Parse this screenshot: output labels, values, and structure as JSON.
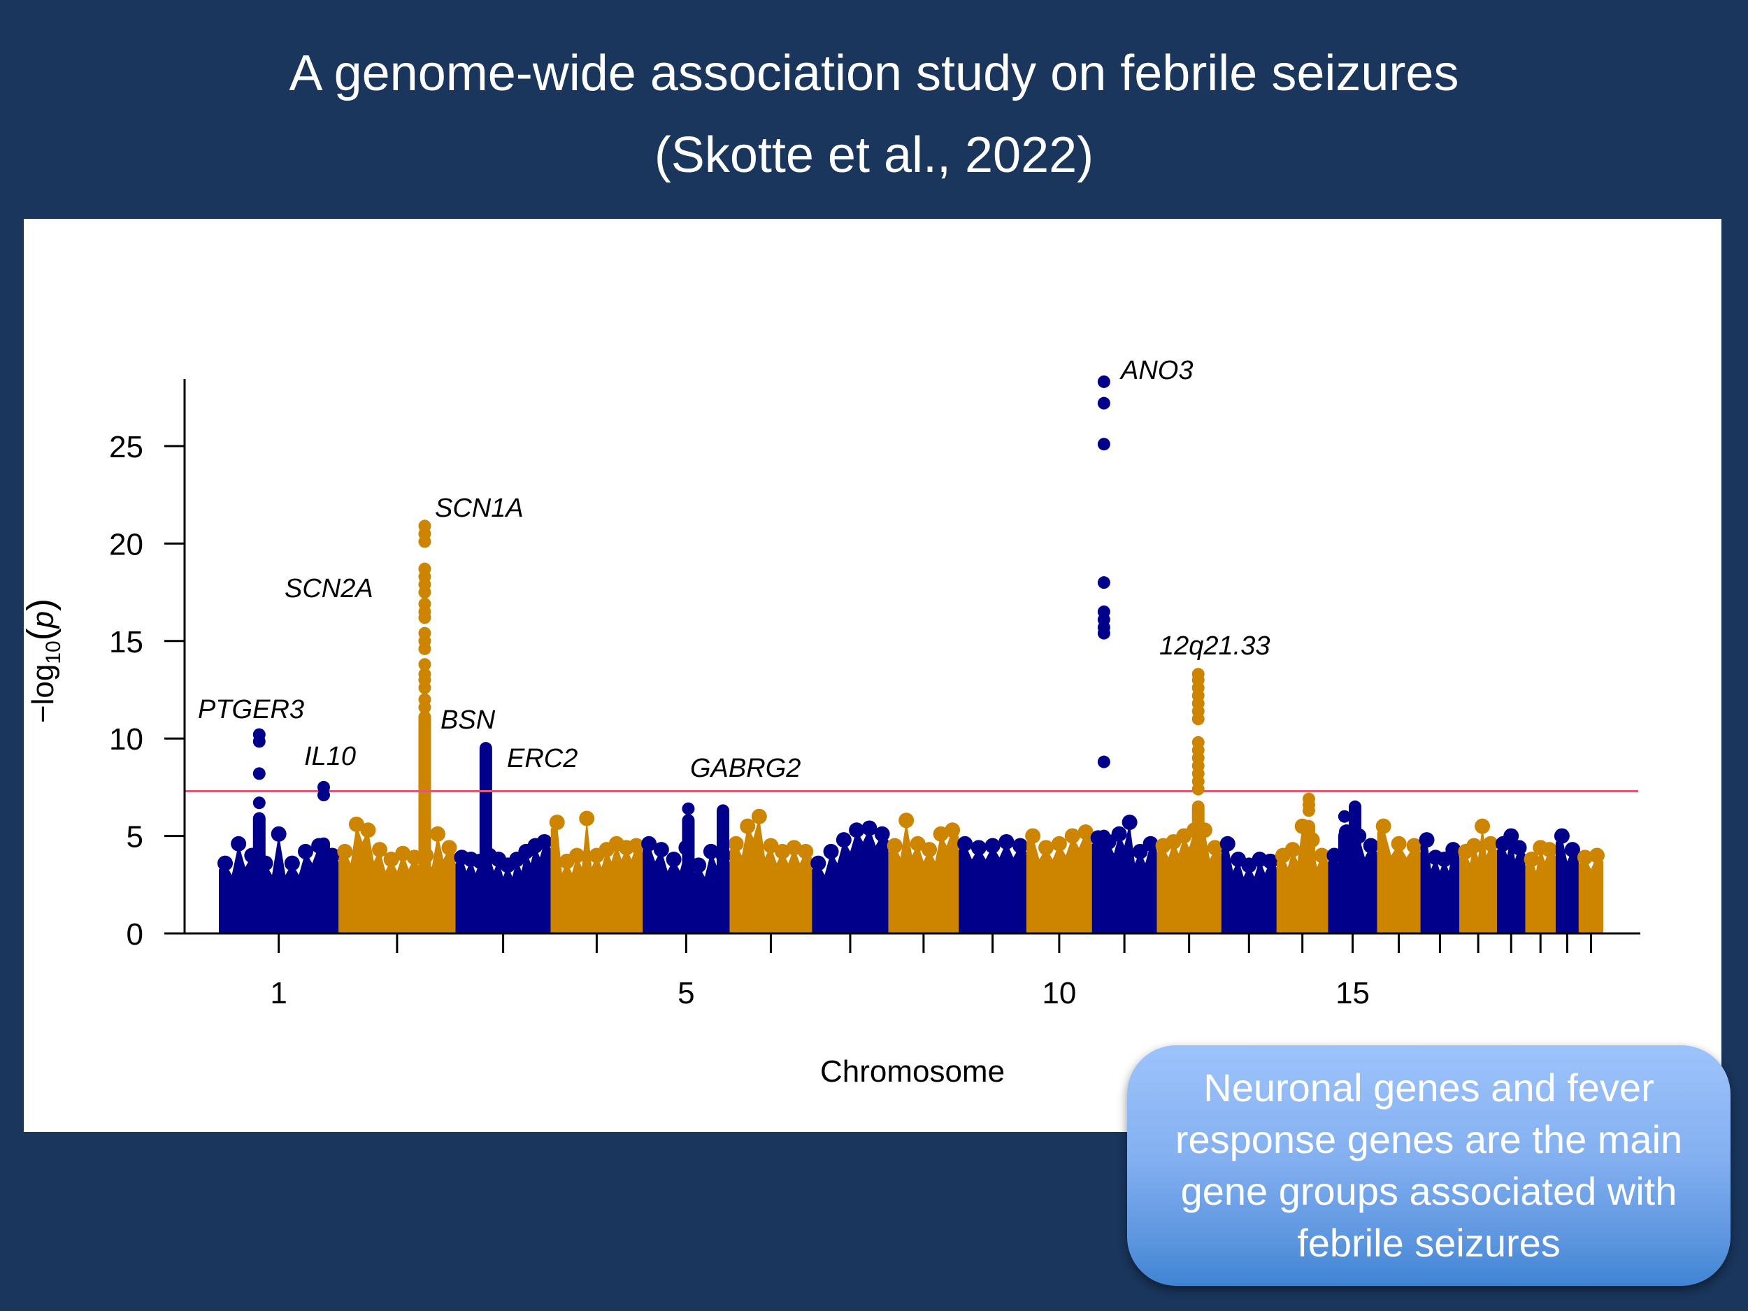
{
  "slide": {
    "title_line1": "A genome-wide association study on febrile seizures",
    "title_line2": "(Skotte et al., 2022)"
  },
  "callout": {
    "lines": [
      "Neuronal genes and fever",
      "response genes are the main",
      "gene groups associated with",
      "febrile seizures"
    ]
  },
  "colors": {
    "background": "#1a365d",
    "panel": "#ffffff",
    "odd_chromosome": "#00008b",
    "even_chromosome": "#cd8500",
    "threshold_line": "#e05a72",
    "callout_top": "#9dc3fb",
    "callout_bottom": "#3f84d3"
  },
  "chart_data": {
    "type": "scatter",
    "subtype": "manhattan",
    "title": "",
    "xlabel": "Chromosome",
    "ylabel_prefix": "−log",
    "ylabel_subscript": "10",
    "ylabel_open": "(",
    "ylabel_variable": "p",
    "ylabel_close": ")",
    "ylim": [
      0,
      28.5
    ],
    "y_ticks": [
      0,
      5,
      10,
      15,
      20,
      25
    ],
    "y_tick_labels": [
      "0",
      "5",
      "10",
      "15",
      "20",
      "25"
    ],
    "x_tick_chromosomes": [
      1,
      2,
      3,
      4,
      5,
      6,
      7,
      8,
      9,
      10,
      11,
      12,
      13,
      14,
      15,
      16,
      17,
      18,
      19,
      20,
      21,
      22
    ],
    "x_tick_labels": [
      {
        "chr": 1,
        "label": "1"
      },
      {
        "chr": 5,
        "label": "5"
      },
      {
        "chr": 10,
        "label": "10"
      },
      {
        "chr": 15,
        "label": "15"
      }
    ],
    "grid": false,
    "legend": "none",
    "significance_threshold": 7.3,
    "chromosomes": [
      {
        "chr": 1,
        "length_mb": 249,
        "envelope": [
          3.6,
          4.6,
          4.0,
          3.6,
          5.1,
          3.6,
          4.2,
          4.5,
          4.0
        ]
      },
      {
        "chr": 2,
        "length_mb": 243,
        "envelope": [
          4.2,
          5.6,
          5.3,
          4.3,
          3.8,
          4.1,
          3.9,
          4.0,
          5.1,
          4.4
        ]
      },
      {
        "chr": 3,
        "length_mb": 198,
        "envelope": [
          3.9,
          3.8,
          3.7,
          4.0,
          3.8,
          3.5,
          3.8,
          4.2,
          4.5,
          4.7
        ]
      },
      {
        "chr": 4,
        "length_mb": 191,
        "envelope": [
          5.7,
          3.7,
          4.0,
          5.9,
          4.0,
          4.3,
          4.6,
          4.4,
          4.5
        ]
      },
      {
        "chr": 5,
        "length_mb": 181,
        "envelope": [
          4.6,
          4.3,
          3.8,
          4.4,
          3.5,
          4.2,
          4.0
        ]
      },
      {
        "chr": 6,
        "length_mb": 171,
        "envelope": [
          4.6,
          5.5,
          6.0,
          4.5,
          4.2,
          4.4,
          4.2
        ]
      },
      {
        "chr": 7,
        "length_mb": 159,
        "envelope": [
          3.6,
          4.2,
          4.8,
          5.3,
          5.4,
          5.1
        ]
      },
      {
        "chr": 8,
        "length_mb": 146,
        "envelope": [
          4.5,
          5.8,
          4.6,
          4.3,
          5.1,
          5.3
        ]
      },
      {
        "chr": 9,
        "length_mb": 141,
        "envelope": [
          4.6,
          4.4,
          4.5,
          4.7,
          4.5
        ]
      },
      {
        "chr": 10,
        "length_mb": 136,
        "envelope": [
          5.0,
          4.4,
          4.6,
          5.0,
          5.2
        ]
      },
      {
        "chr": 11,
        "length_mb": 135,
        "envelope": [
          4.9,
          4.7,
          5.1,
          5.7,
          4.2,
          4.6
        ]
      },
      {
        "chr": 12,
        "length_mb": 134,
        "envelope": [
          4.5,
          4.7,
          5.0,
          5.3,
          5.3,
          4.4
        ]
      },
      {
        "chr": 13,
        "length_mb": 115,
        "envelope": [
          4.6,
          3.8,
          3.5,
          3.8,
          3.7
        ]
      },
      {
        "chr": 14,
        "length_mb": 107,
        "envelope": [
          4.0,
          4.3,
          5.5,
          4.8,
          4.0
        ]
      },
      {
        "chr": 15,
        "length_mb": 102,
        "envelope": [
          4.0,
          5.2,
          5.0,
          4.5
        ]
      },
      {
        "chr": 16,
        "length_mb": 90,
        "envelope": [
          5.5,
          4.6,
          4.5
        ]
      },
      {
        "chr": 17,
        "length_mb": 81,
        "envelope": [
          4.8,
          3.9,
          3.8,
          4.3
        ]
      },
      {
        "chr": 18,
        "length_mb": 78,
        "envelope": [
          4.2,
          4.5,
          5.5,
          4.6
        ]
      },
      {
        "chr": 19,
        "length_mb": 59,
        "envelope": [
          4.6,
          5.0,
          4.4
        ]
      },
      {
        "chr": 20,
        "length_mb": 63,
        "envelope": [
          3.8,
          4.4,
          4.3
        ]
      },
      {
        "chr": 21,
        "length_mb": 48,
        "envelope": [
          5.0,
          4.3
        ]
      },
      {
        "chr": 22,
        "length_mb": 51,
        "envelope": [
          3.9,
          4.0
        ]
      }
    ],
    "peaks": [
      {
        "chr": 1,
        "pos_mb": 84,
        "column_top": 5.9,
        "points": [
          10.2,
          9.85,
          8.2,
          6.7
        ]
      },
      {
        "chr": 1,
        "pos_mb": 218,
        "column_top": 4.6,
        "points": [
          7.5,
          7.1
        ]
      },
      {
        "chr": 2,
        "pos_mb": 179,
        "column_top": 11.1,
        "points": [
          20.9,
          20.5,
          20.1,
          18.7,
          18.3,
          17.9,
          17.5,
          16.9,
          16.5,
          16.2,
          15.4,
          15.0,
          14.6,
          13.8,
          13.3,
          13.0,
          12.6,
          12.0,
          11.6
        ]
      },
      {
        "chr": 3,
        "pos_mb": 63,
        "column_top": 9.5,
        "points": []
      },
      {
        "chr": 5,
        "pos_mb": 95,
        "column_top": 5.8,
        "points": [
          6.4
        ]
      },
      {
        "chr": 5,
        "pos_mb": 167,
        "column_top": 6.3,
        "points": []
      },
      {
        "chr": 11,
        "pos_mb": 25,
        "column_top": 5.0,
        "points": [
          28.3,
          27.2,
          25.1,
          18.0,
          16.5,
          16.1,
          15.7,
          15.4,
          8.8
        ]
      },
      {
        "chr": 12,
        "pos_mb": 86,
        "column_top": 6.5,
        "points": [
          13.3,
          13.0,
          12.6,
          12.2,
          11.8,
          11.4,
          11.0,
          9.8,
          9.4,
          9.0,
          8.6,
          8.2,
          7.8,
          7.4
        ]
      },
      {
        "chr": 14,
        "pos_mb": 67,
        "column_top": 5.5,
        "points": [
          6.9,
          6.6,
          6.3
        ]
      },
      {
        "chr": 15,
        "pos_mb": 56,
        "column_top": 6.5,
        "points": []
      },
      {
        "chr": 15,
        "pos_mb": 34,
        "column_top": 5.0,
        "points": [
          6.0
        ]
      }
    ],
    "annotations": [
      {
        "text": "PTGER3",
        "chr": 1
      },
      {
        "text": "IL10",
        "chr": 1
      },
      {
        "text": "SCN2A",
        "chr": 2
      },
      {
        "text": "SCN1A",
        "chr": 2
      },
      {
        "text": "BSN",
        "chr": 3
      },
      {
        "text": "ERC2",
        "chr": 3
      },
      {
        "text": "GABRG2",
        "chr": 5
      },
      {
        "text": "ANO3",
        "chr": 11
      },
      {
        "text": "12q21.33",
        "chr": 12
      }
    ]
  }
}
